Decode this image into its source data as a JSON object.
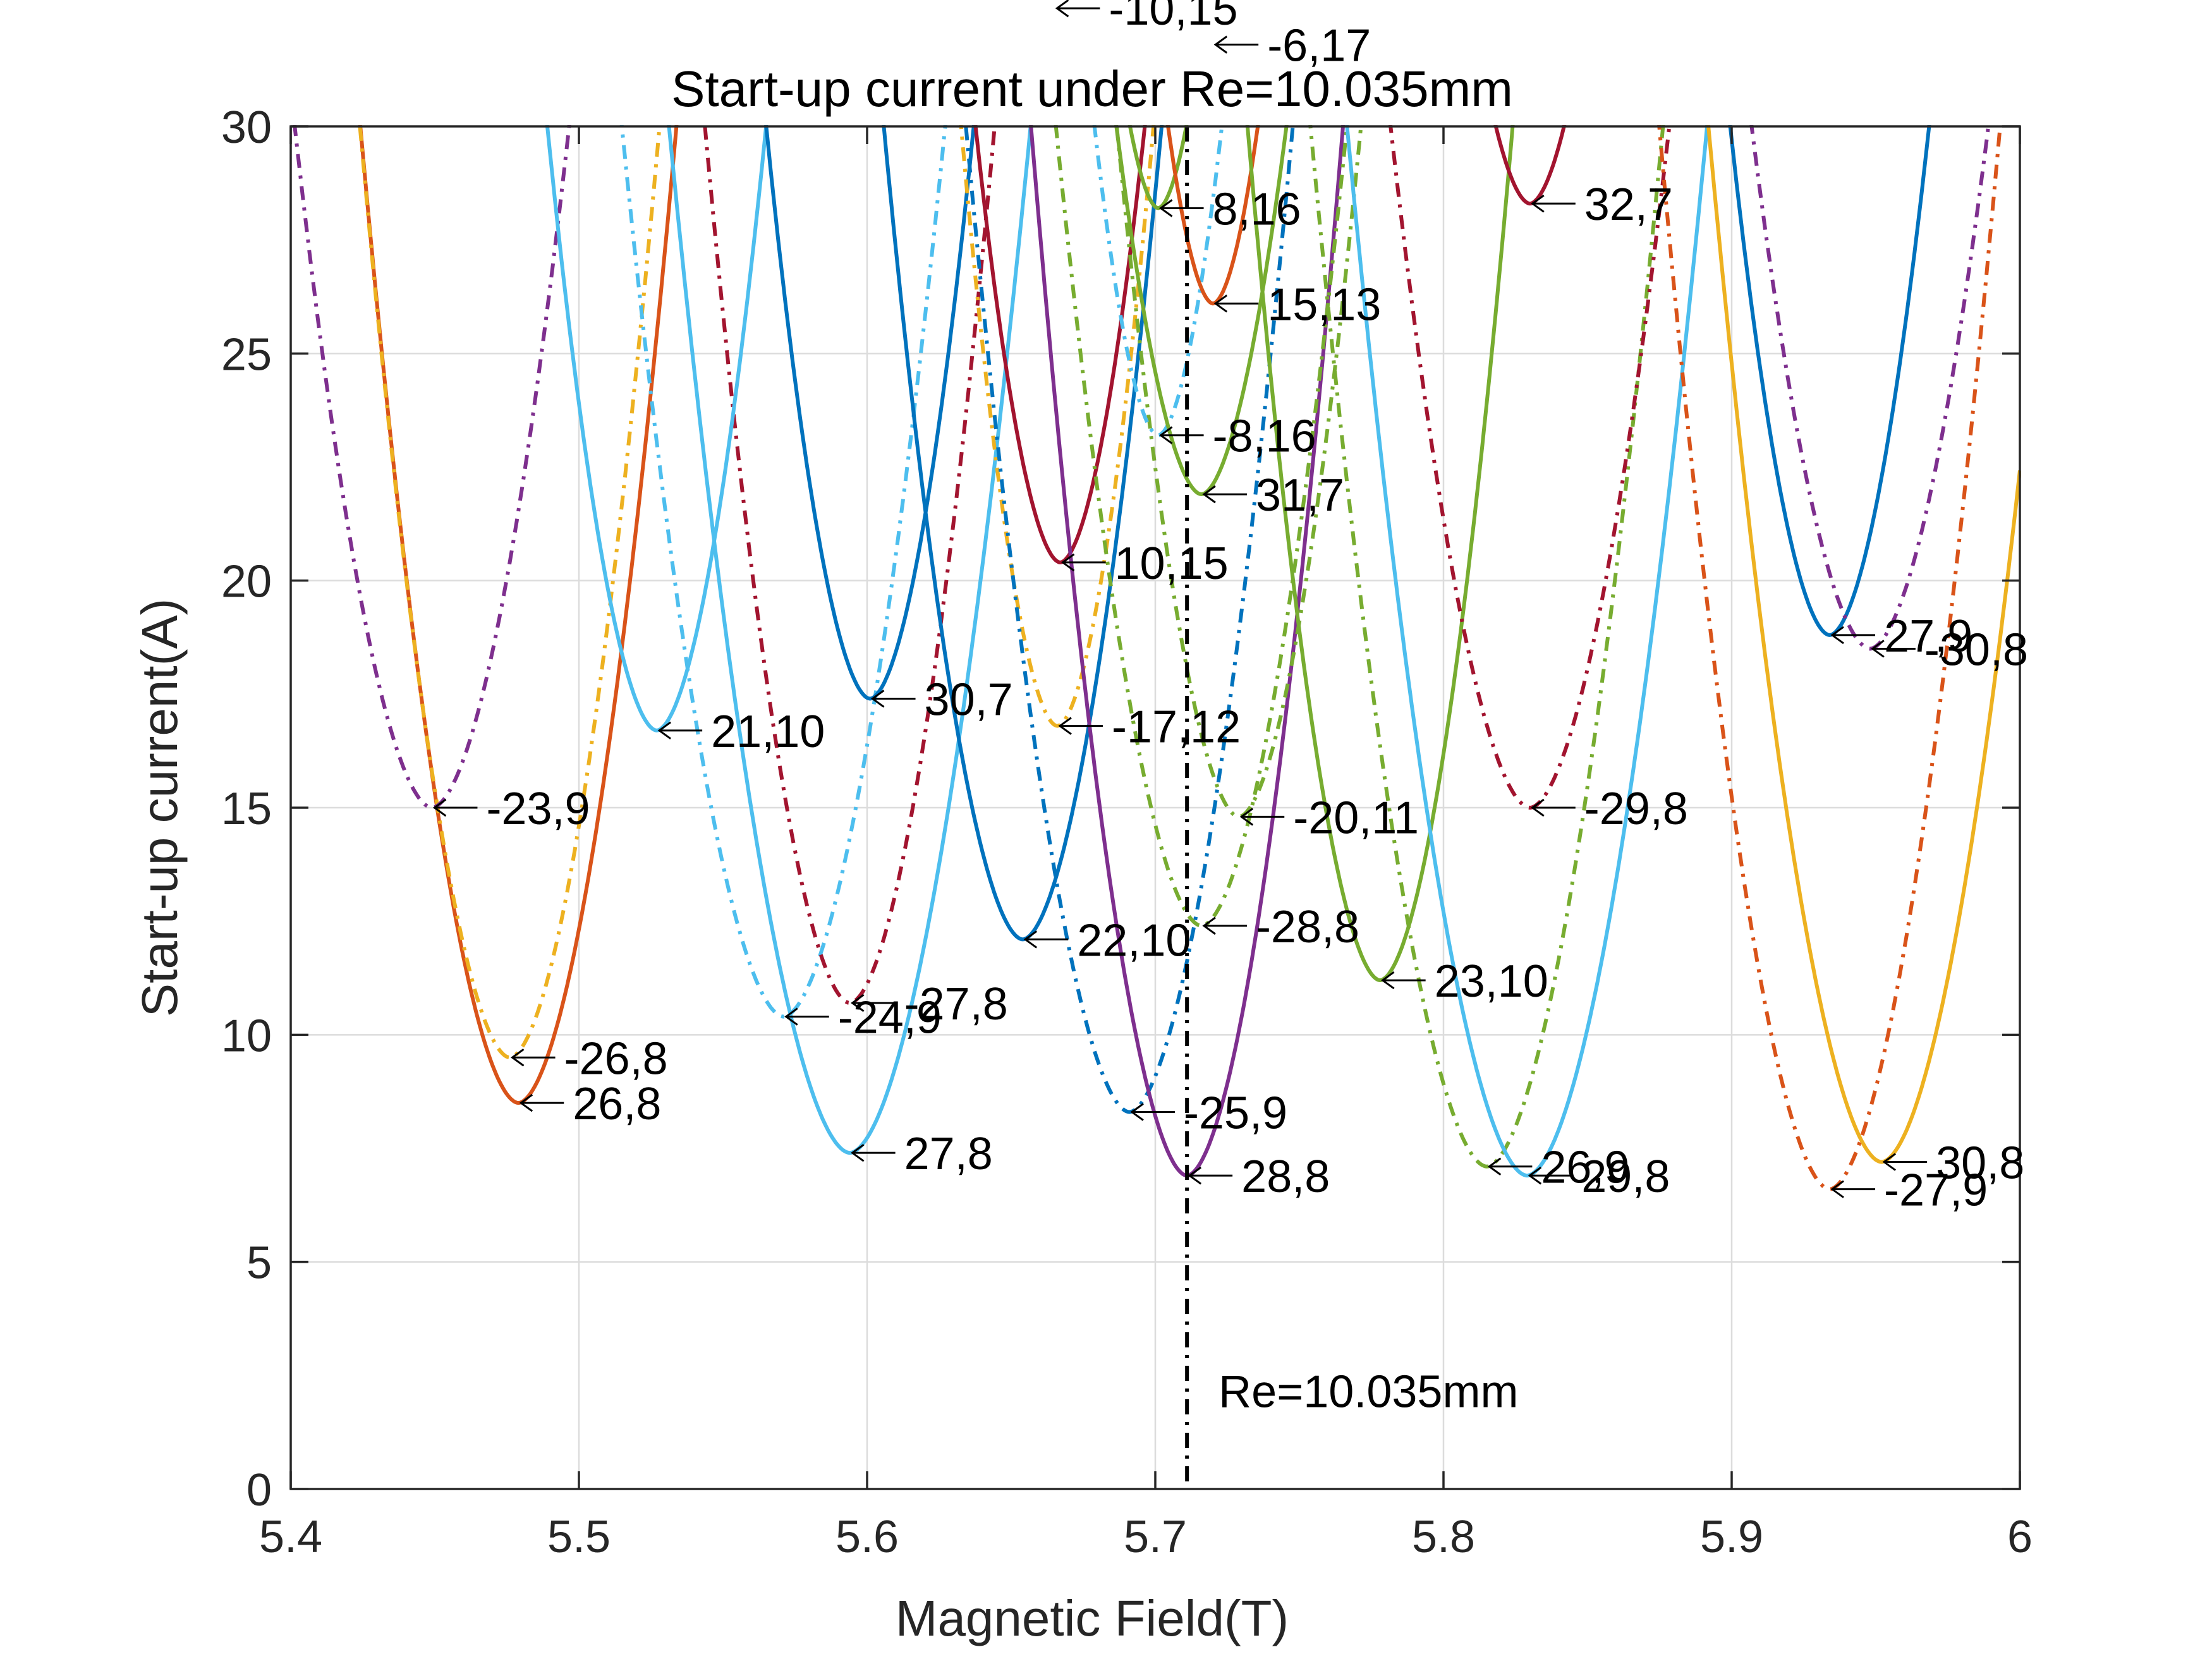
{
  "chart_data": {
    "type": "line",
    "title": "Start-up current under Re=10.035mm",
    "xlabel": "Magnetic Field(T)",
    "ylabel": "Start-up current(A)",
    "xlim": [
      5.4,
      6.0
    ],
    "ylim": [
      0,
      30
    ],
    "xticks": [
      "5.4",
      "5.5",
      "5.6",
      "5.7",
      "5.8",
      "5.9",
      "6"
    ],
    "yticks": [
      "0",
      "5",
      "10",
      "15",
      "20",
      "25",
      "30"
    ],
    "grid": true,
    "legend": "none",
    "vline": {
      "x": 5.711,
      "label": "Re=10.035mm",
      "color": "#000000"
    },
    "series": [
      {
        "mode": "26,8",
        "color": "#D95319",
        "dash": "solid",
        "min_x": 5.479,
        "min_y": 8.5,
        "k": 4000,
        "ex": 1.8
      },
      {
        "mode": "-26,8",
        "color": "#EDB120",
        "dash": "dashdot",
        "min_x": 5.476,
        "min_y": 9.5,
        "k": 4200,
        "ex": 1.8
      },
      {
        "mode": "-23,9",
        "color": "#7E2F8E",
        "dash": "dashdot",
        "min_x": 5.449,
        "min_y": 15.0,
        "k": 3600,
        "ex": 1.8
      },
      {
        "mode": "27,8",
        "color": "#4DBEEE",
        "dash": "solid",
        "min_x": 5.594,
        "min_y": 7.4,
        "k": 3300,
        "ex": 1.8
      },
      {
        "mode": "-24,9",
        "color": "#4DBEEE",
        "dash": "dashdot",
        "min_x": 5.571,
        "min_y": 10.4,
        "k": 3500,
        "ex": 1.8
      },
      {
        "mode": "-27,8",
        "color": "#A2142F",
        "dash": "dashdot",
        "min_x": 5.594,
        "min_y": 10.7,
        "k": 4200,
        "ex": 1.8
      },
      {
        "mode": "21,10",
        "color": "#4DBEEE",
        "dash": "solid",
        "min_x": 5.527,
        "min_y": 16.7,
        "k": 4800,
        "ex": 1.8
      },
      {
        "mode": "30,7",
        "color": "#0072BD",
        "dash": "solid",
        "min_x": 5.601,
        "min_y": 17.4,
        "k": 5000,
        "ex": 1.8
      },
      {
        "mode": "22,10",
        "color": "#0072BD",
        "dash": "solid",
        "min_x": 5.654,
        "min_y": 12.1,
        "k": 4200,
        "ex": 1.8
      },
      {
        "mode": "-17,12",
        "color": "#EDB120",
        "dash": "dashdot",
        "min_x": 5.666,
        "min_y": 16.8,
        "k": 6000,
        "ex": 1.8
      },
      {
        "mode": "10,15",
        "color": "#A2142F",
        "dash": "solid",
        "min_x": 5.667,
        "min_y": 20.4,
        "k": 5500,
        "ex": 1.8
      },
      {
        "mode": "-25,9",
        "color": "#0072BD",
        "dash": "dashdot",
        "min_x": 5.691,
        "min_y": 8.3,
        "k": 3800,
        "ex": 1.8
      },
      {
        "mode": "28,8",
        "color": "#7E2F8E",
        "dash": "solid",
        "min_x": 5.711,
        "min_y": 6.9,
        "k": 4400,
        "ex": 1.8
      },
      {
        "mode": "-28,8",
        "color": "#77AC30",
        "dash": "dashdot",
        "min_x": 5.716,
        "min_y": 12.4,
        "k": 3800,
        "ex": 1.8
      },
      {
        "mode": "-20,11",
        "color": "#77AC30",
        "dash": "dashdot",
        "min_x": 5.729,
        "min_y": 14.8,
        "k": 4500,
        "ex": 1.8
      },
      {
        "mode": "-8,16",
        "color": "#4DBEEE",
        "dash": "dashdot",
        "min_x": 5.701,
        "min_y": 23.2,
        "k": 6500,
        "ex": 1.8
      },
      {
        "mode": "31,7",
        "color": "#77AC30",
        "dash": "solid",
        "min_x": 5.716,
        "min_y": 21.9,
        "k": 4600,
        "ex": 1.8
      },
      {
        "mode": "8,16",
        "color": "#77AC30",
        "dash": "solid",
        "min_x": 5.701,
        "min_y": 28.2,
        "k": 7500,
        "ex": 1.8
      },
      {
        "mode": "15,13",
        "color": "#D95319",
        "dash": "solid",
        "min_x": 5.72,
        "min_y": 26.1,
        "k": 7000,
        "ex": 1.8
      },
      {
        "mode": "23,10",
        "color": "#77AC30",
        "dash": "solid",
        "min_x": 5.778,
        "min_y": 11.2,
        "k": 4800,
        "ex": 1.8
      },
      {
        "mode": "26,9",
        "color": "#77AC30",
        "dash": "dashdot",
        "min_x": 5.815,
        "min_y": 7.1,
        "k": 3500,
        "ex": 1.8
      },
      {
        "mode": "29,8",
        "color": "#4DBEEE",
        "dash": "solid",
        "min_x": 5.829,
        "min_y": 6.9,
        "k": 3400,
        "ex": 1.8
      },
      {
        "mode": "-29,8",
        "color": "#A2142F",
        "dash": "dashdot",
        "min_x": 5.83,
        "min_y": 15.0,
        "k": 3500,
        "ex": 1.8
      },
      {
        "mode": "32,7",
        "color": "#A2142F",
        "dash": "solid",
        "min_x": 5.83,
        "min_y": 28.3,
        "k": 5000,
        "ex": 1.8
      },
      {
        "mode": "27,9",
        "color": "#0072BD",
        "dash": "solid",
        "min_x": 5.934,
        "min_y": 18.8,
        "k": 4800,
        "ex": 1.8
      },
      {
        "mode": "-30,8",
        "color": "#7E2F8E",
        "dash": "dashdot",
        "min_x": 5.948,
        "min_y": 18.5,
        "k": 3600,
        "ex": 1.8
      },
      {
        "mode": "30,8",
        "color": "#EDB120",
        "dash": "solid",
        "min_x": 5.952,
        "min_y": 7.2,
        "k": 3600,
        "ex": 1.8
      },
      {
        "mode": "-27,9",
        "color": "#D95319",
        "dash": "dashdot",
        "min_x": 5.934,
        "min_y": 6.6,
        "k": 3800,
        "ex": 1.8
      }
    ],
    "annotations": [
      {
        "text": "-10,15",
        "x": 5.665,
        "y": 32.6
      },
      {
        "text": "-6,17",
        "x": 5.72,
        "y": 31.8
      }
    ]
  }
}
